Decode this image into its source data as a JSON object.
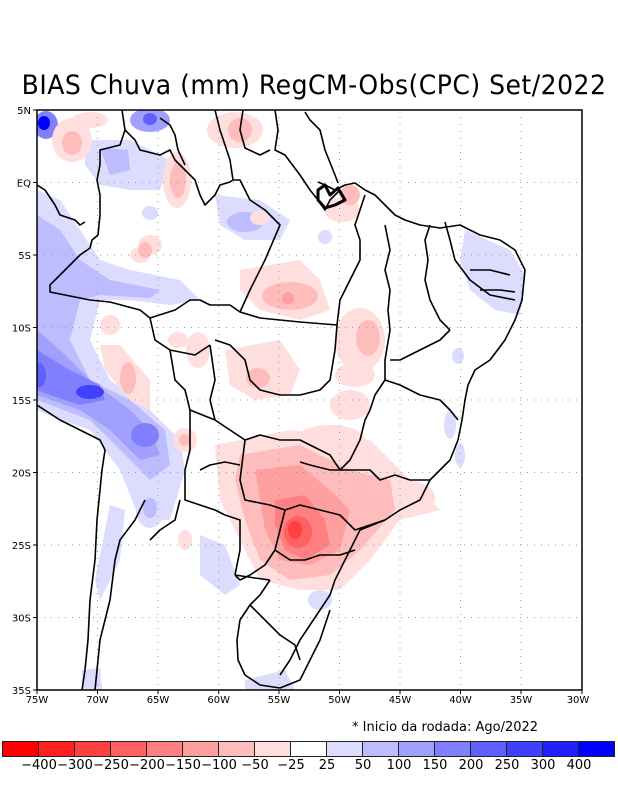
{
  "title": "BIAS Chuva (mm) RegCM-Obs(CPC) Set/2022",
  "note": "* Inicio da rodada: Ago/2022",
  "map": {
    "region": "Brazil / South America",
    "lon_range": [
      -75,
      -30
    ],
    "lat_range": [
      -35,
      5
    ],
    "y_axis_labels": [
      "5N",
      "EQ",
      "5S",
      "10S",
      "15S",
      "20S",
      "25S",
      "30S",
      "35S"
    ],
    "y_axis_values": [
      5,
      0,
      -5,
      -10,
      -15,
      -20,
      -25,
      -30,
      -35
    ],
    "x_axis_labels": [
      "75W",
      "70W",
      "65W",
      "60W",
      "55W",
      "50W",
      "45W",
      "40W",
      "35W",
      "30W"
    ],
    "x_axis_values": [
      -75,
      -70,
      -65,
      -60,
      -55,
      -50,
      -45,
      -40,
      -35,
      -30
    ],
    "grid": "dotted"
  },
  "legend": {
    "colors": [
      "#ff0000",
      "#ff2020",
      "#ff4040",
      "#ff6060",
      "#ff8080",
      "#ffa0a0",
      "#ffbcbc",
      "#ffdede",
      "#ffffff",
      "#dcdcff",
      "#bcbcff",
      "#a0a0ff",
      "#8080ff",
      "#6060ff",
      "#4040ff",
      "#2020ff",
      "#0000ff"
    ],
    "labels": [
      "-400",
      "-300",
      "-250",
      "-200",
      "-150",
      "-100",
      "-50",
      "-25",
      "25",
      "50",
      "100",
      "150",
      "200",
      "250",
      "300",
      "400"
    ]
  }
}
